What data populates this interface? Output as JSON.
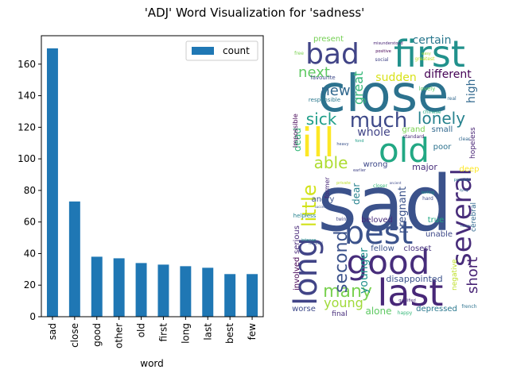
{
  "title": "'ADJ' Word Visualization for 'sadness'",
  "colors": {
    "bar": "#1f77b4"
  },
  "chart_data": {
    "type": "bar",
    "categories": [
      "sad",
      "close",
      "good",
      "other",
      "old",
      "first",
      "long",
      "last",
      "best",
      "few"
    ],
    "series": [
      {
        "name": "count",
        "values": [
          170,
          73,
          38,
          37,
          34,
          33,
          32,
          31,
          27,
          27
        ]
      }
    ],
    "xlabel": "word",
    "ylabel": "",
    "ylim": [
      0,
      178
    ],
    "yticks": [
      0,
      20,
      40,
      60,
      80,
      100,
      120,
      140,
      160
    ],
    "legend": "top-right",
    "grid": false
  },
  "wordcloud": {
    "words": [
      {
        "text": "sad",
        "color": "#3b528b"
      },
      {
        "text": "close",
        "color": "#2c728e"
      },
      {
        "text": "good",
        "color": "#472d7b"
      },
      {
        "text": "last",
        "color": "#482878"
      },
      {
        "text": "long",
        "color": "#414487"
      },
      {
        "text": "best",
        "color": "#3b528b"
      },
      {
        "text": "old",
        "color": "#22a884"
      },
      {
        "text": "first",
        "color": "#21918c"
      },
      {
        "text": "bad",
        "color": "#414487"
      },
      {
        "text": "ill",
        "color": "#fde725"
      },
      {
        "text": "several",
        "color": "#472c7a"
      },
      {
        "text": "much",
        "color": "#3e4989"
      },
      {
        "text": "many",
        "color": "#7ad151"
      },
      {
        "text": "lonely",
        "color": "#26828e"
      },
      {
        "text": "sick",
        "color": "#1f9e89"
      },
      {
        "text": "second",
        "color": "#3b528b"
      },
      {
        "text": "little",
        "color": "#d2e21b"
      },
      {
        "text": "able",
        "color": "#addc30"
      },
      {
        "text": "next",
        "color": "#5ec962"
      },
      {
        "text": "new",
        "color": "#31688e"
      },
      {
        "text": "short",
        "color": "#482475"
      },
      {
        "text": "different",
        "color": "#440154"
      },
      {
        "text": "young",
        "color": "#a0da39"
      },
      {
        "text": "sudden",
        "color": "#d8e219"
      },
      {
        "text": "great",
        "color": "#35b779"
      },
      {
        "text": "high",
        "color": "#31688e"
      },
      {
        "text": "younger",
        "color": "#21918c"
      },
      {
        "text": "pregnant",
        "color": "#3b528b"
      },
      {
        "text": "whole",
        "color": "#414487"
      },
      {
        "text": "certain",
        "color": "#2a788e"
      },
      {
        "text": "dead",
        "color": "#35b779"
      },
      {
        "text": "alone",
        "color": "#5ec962"
      },
      {
        "text": "disappointed",
        "color": "#3b528b"
      },
      {
        "text": "major",
        "color": "#472d7b"
      },
      {
        "text": "present",
        "color": "#75d054"
      },
      {
        "text": "dear",
        "color": "#26828e"
      },
      {
        "text": "grand",
        "color": "#7ad151"
      },
      {
        "text": "small",
        "color": "#31688e"
      },
      {
        "text": "wrong",
        "color": "#3e4989"
      },
      {
        "text": "depressed",
        "color": "#2a788e"
      },
      {
        "text": "closest",
        "color": "#46337e"
      },
      {
        "text": "fellow",
        "color": "#3b528b"
      },
      {
        "text": "beloved",
        "color": "#472d7b"
      },
      {
        "text": "serious",
        "color": "#482878"
      },
      {
        "text": "involved",
        "color": "#440154"
      },
      {
        "text": "unable",
        "color": "#3e4989"
      },
      {
        "text": "true",
        "color": "#22a884"
      },
      {
        "text": "angry",
        "color": "#3b528b"
      },
      {
        "text": "poor",
        "color": "#2c728e"
      },
      {
        "text": "hopeless",
        "color": "#482475"
      },
      {
        "text": "deep",
        "color": "#fde725"
      },
      {
        "text": "cerebral",
        "color": "#31688e"
      },
      {
        "text": "worse",
        "color": "#3e4989"
      },
      {
        "text": "final",
        "color": "#472d7b"
      },
      {
        "text": "negative",
        "color": "#bddf26"
      },
      {
        "text": "former",
        "color": "#482878"
      },
      {
        "text": "impossible",
        "color": "#440154"
      },
      {
        "text": "helpless",
        "color": "#26828e"
      },
      {
        "text": "favourite",
        "color": "#3e4989"
      },
      {
        "text": "responsible",
        "color": "#2a788e"
      },
      {
        "text": "chinese",
        "color": "#22a884"
      },
      {
        "text": "social",
        "color": "#414487"
      },
      {
        "text": "lovely",
        "color": "#5ec962"
      },
      {
        "text": "real",
        "color": "#31688e"
      },
      {
        "text": "greatest",
        "color": "#bddf26"
      },
      {
        "text": "standard",
        "color": "#482878"
      },
      {
        "text": "heavy",
        "color": "#3b528b"
      },
      {
        "text": "fond",
        "color": "#1f9e89"
      },
      {
        "text": "clear",
        "color": "#31688e"
      },
      {
        "text": "happy",
        "color": "#35b779"
      },
      {
        "text": "french",
        "color": "#2c728e"
      },
      {
        "text": "twin",
        "color": "#414487"
      },
      {
        "text": "hard",
        "color": "#3e4989"
      },
      {
        "text": "free",
        "color": "#7ad151"
      },
      {
        "text": "positive",
        "color": "#440154"
      },
      {
        "text": "misunderstood",
        "color": "#482475"
      },
      {
        "text": "easy",
        "color": "#a0da39"
      },
      {
        "text": "earlier",
        "color": "#414487"
      },
      {
        "text": "successful",
        "color": "#3b528b"
      },
      {
        "text": "intense",
        "color": "#21918c"
      },
      {
        "text": "human",
        "color": "#31688e"
      },
      {
        "text": "possible",
        "color": "#2a788e"
      },
      {
        "text": "lasting",
        "color": "#21918c"
      },
      {
        "text": "dying",
        "color": "#31688e"
      },
      {
        "text": "hateful",
        "color": "#3b528b"
      },
      {
        "text": "qualified",
        "color": "#472d7b"
      },
      {
        "text": "closer",
        "color": "#35b779"
      },
      {
        "text": "ancient",
        "color": "#3e4989"
      },
      {
        "text": "private",
        "color": "#bddf26"
      }
    ]
  }
}
